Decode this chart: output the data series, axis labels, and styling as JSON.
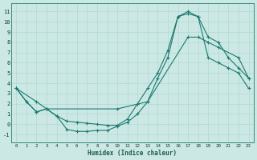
{
  "xlabel": "Humidex (Indice chaleur)",
  "bg_color": "#cce8e5",
  "line_color": "#1a7a6e",
  "grid_color": "#aad4cf",
  "xlim": [
    -0.5,
    23.5
  ],
  "ylim": [
    -1.8,
    11.8
  ],
  "xticks": [
    0,
    1,
    2,
    3,
    4,
    5,
    6,
    7,
    8,
    9,
    10,
    11,
    12,
    13,
    14,
    15,
    16,
    17,
    18,
    19,
    20,
    21,
    22,
    23
  ],
  "yticks": [
    -1,
    0,
    1,
    2,
    3,
    4,
    5,
    6,
    7,
    8,
    9,
    10,
    11
  ],
  "line1_x": [
    0,
    1,
    2,
    3,
    4,
    5,
    6,
    7,
    8,
    9,
    10,
    11,
    12,
    13,
    14,
    15,
    16,
    17,
    18,
    19,
    20,
    21,
    22,
    23
  ],
  "line1_y": [
    3.5,
    2.2,
    1.2,
    1.5,
    0.8,
    0.3,
    0.2,
    0.1,
    0.0,
    -0.1,
    -0.1,
    0.5,
    2.0,
    3.5,
    5.0,
    7.2,
    10.5,
    11.0,
    10.5,
    8.5,
    8.0,
    6.5,
    5.5,
    4.5
  ],
  "line2_x": [
    0,
    2,
    3,
    10,
    13,
    17,
    18,
    19,
    20,
    22,
    23
  ],
  "line2_y": [
    3.5,
    2.2,
    1.5,
    1.5,
    2.2,
    8.5,
    8.5,
    8.0,
    7.5,
    6.5,
    4.5
  ],
  "line3_x": [
    0,
    1,
    2,
    3,
    4,
    5,
    6,
    7,
    8,
    9,
    10,
    11,
    12,
    13,
    14,
    15,
    16,
    17,
    18,
    19,
    20,
    21,
    22,
    23
  ],
  "line3_y": [
    3.5,
    2.2,
    1.2,
    1.5,
    0.8,
    -0.5,
    -0.7,
    -0.7,
    -0.6,
    -0.6,
    -0.2,
    0.2,
    1.0,
    2.2,
    4.5,
    6.5,
    10.5,
    10.8,
    10.5,
    6.5,
    6.0,
    5.5,
    5.0,
    3.5
  ]
}
